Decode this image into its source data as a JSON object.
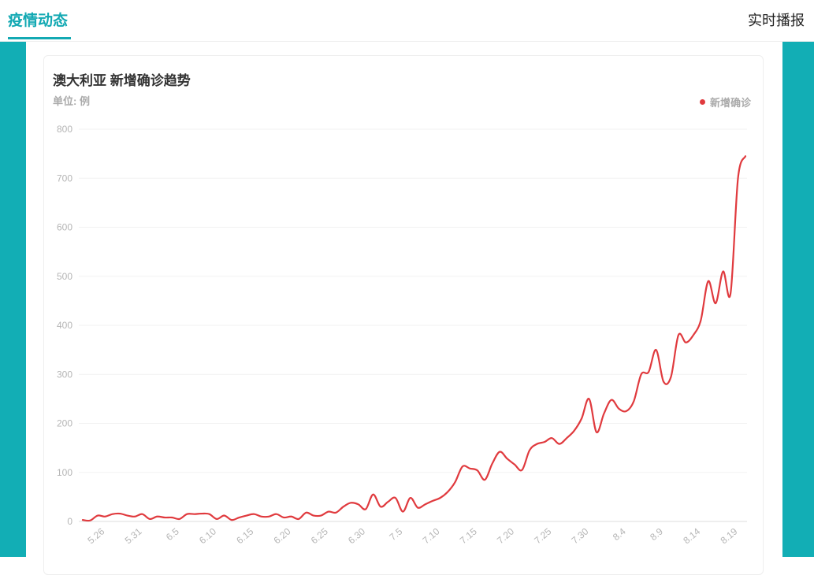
{
  "header": {
    "active_tab": "疫情动态",
    "right_tab": "实时播报"
  },
  "colors": {
    "accent": "#13a9b3",
    "side_panel": "#12aeb5",
    "series": "#e03a3e"
  },
  "chart_data": {
    "type": "line",
    "title": "澳大利亚 新增确诊趋势",
    "unit_label": "单位: 例",
    "legend_position": "top-right",
    "grid": true,
    "ylim": [
      0,
      800
    ],
    "yticks": [
      0,
      100,
      200,
      300,
      400,
      500,
      600,
      700,
      800
    ],
    "xtick_labels": [
      "5.26",
      "5.31",
      "6.5",
      "6.10",
      "6.15",
      "6.20",
      "6.25",
      "6.30",
      "7.5",
      "7.10",
      "7.15",
      "7.20",
      "7.25",
      "7.30",
      "8.4",
      "8.9",
      "8.14",
      "8.19"
    ],
    "x": [
      "5.23",
      "5.24",
      "5.25",
      "5.26",
      "5.27",
      "5.28",
      "5.29",
      "5.30",
      "5.31",
      "6.1",
      "6.2",
      "6.3",
      "6.4",
      "6.5",
      "6.6",
      "6.7",
      "6.8",
      "6.9",
      "6.10",
      "6.11",
      "6.12",
      "6.13",
      "6.14",
      "6.15",
      "6.16",
      "6.17",
      "6.18",
      "6.19",
      "6.20",
      "6.21",
      "6.22",
      "6.23",
      "6.24",
      "6.25",
      "6.26",
      "6.27",
      "6.28",
      "6.29",
      "6.30",
      "7.1",
      "7.2",
      "7.3",
      "7.4",
      "7.5",
      "7.6",
      "7.7",
      "7.8",
      "7.9",
      "7.10",
      "7.11",
      "7.12",
      "7.13",
      "7.14",
      "7.15",
      "7.16",
      "7.17",
      "7.18",
      "7.19",
      "7.20",
      "7.21",
      "7.22",
      "7.23",
      "7.24",
      "7.25",
      "7.26",
      "7.27",
      "7.28",
      "7.29",
      "7.30",
      "7.31",
      "8.1",
      "8.2",
      "8.3",
      "8.4",
      "8.5",
      "8.6",
      "8.7",
      "8.8",
      "8.9",
      "8.10",
      "8.11",
      "8.12",
      "8.13",
      "8.14",
      "8.15",
      "8.16",
      "8.17",
      "8.18",
      "8.19",
      "8.20"
    ],
    "series": [
      {
        "name": "新增确诊",
        "values": [
          3,
          2,
          12,
          10,
          15,
          16,
          12,
          10,
          15,
          5,
          10,
          8,
          8,
          5,
          15,
          15,
          16,
          15,
          5,
          12,
          3,
          8,
          12,
          15,
          10,
          10,
          15,
          8,
          10,
          5,
          18,
          12,
          12,
          20,
          18,
          30,
          38,
          35,
          25,
          55,
          30,
          40,
          48,
          20,
          48,
          28,
          35,
          42,
          48,
          60,
          80,
          112,
          108,
          104,
          85,
          118,
          142,
          128,
          116,
          105,
          145,
          158,
          162,
          170,
          158,
          170,
          185,
          210,
          250,
          182,
          220,
          248,
          230,
          225,
          245,
          300,
          305,
          350,
          285,
          295,
          380,
          365,
          380,
          410,
          490,
          445,
          510,
          465,
          700,
          745
        ]
      }
    ]
  }
}
